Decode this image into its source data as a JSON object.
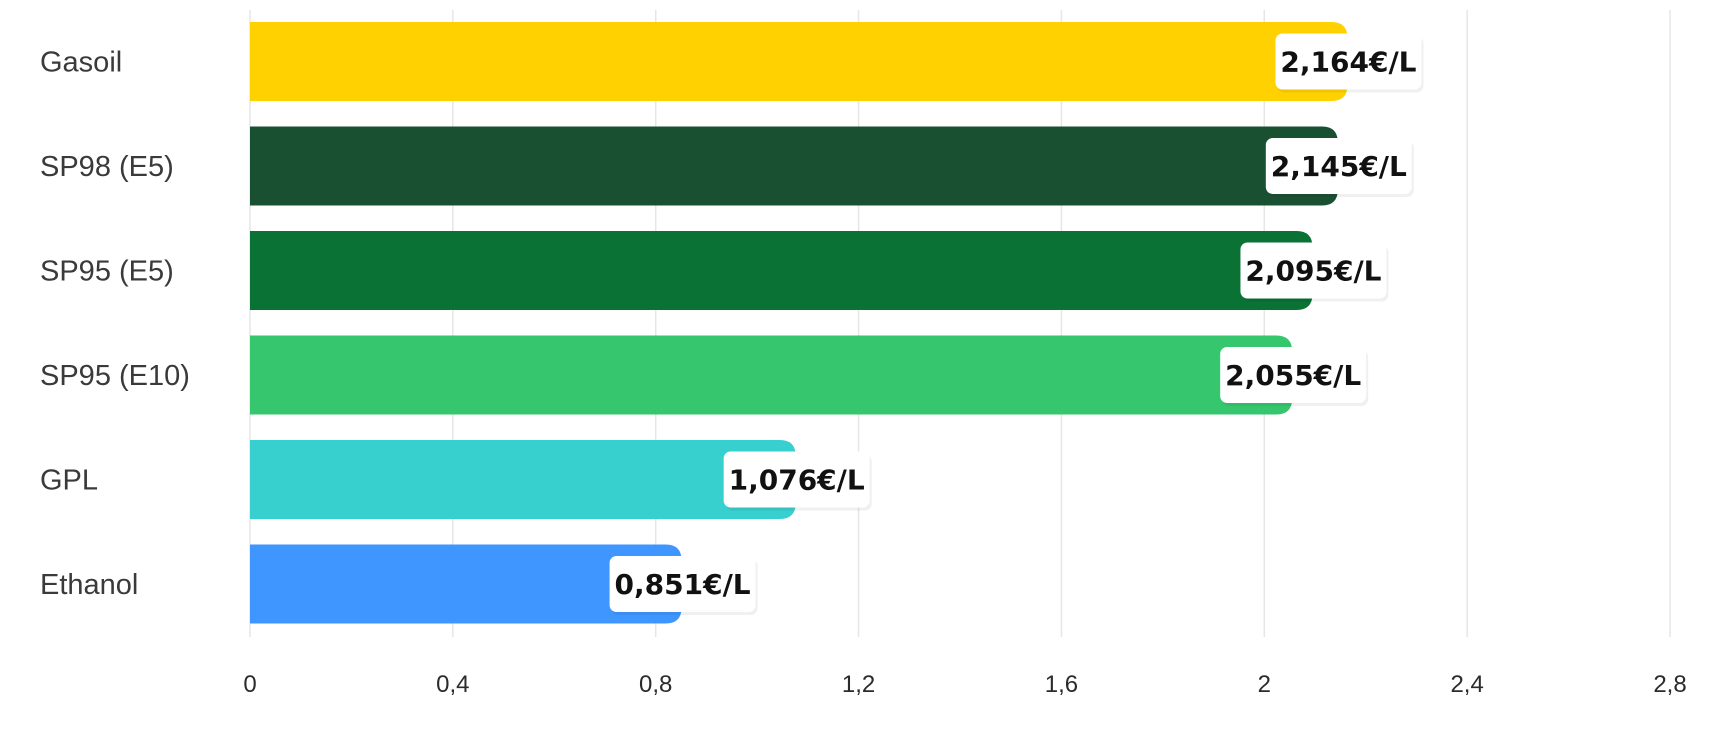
{
  "chart_data": {
    "type": "bar",
    "orientation": "horizontal",
    "categories": [
      "Gasoil",
      "SP98 (E5)",
      "SP95 (E5)",
      "SP95 (E10)",
      "GPL",
      "Ethanol"
    ],
    "values": [
      2.164,
      2.145,
      2.095,
      2.055,
      1.076,
      0.851
    ],
    "value_labels": [
      "2,164€/L",
      "2,145€/L",
      "2,095€/L",
      "2,055€/L",
      "1,076€/L",
      "0,851€/L"
    ],
    "colors": [
      "#FFD100",
      "#1A5032",
      "#0A7234",
      "#36C66E",
      "#38CFCF",
      "#3F96FF"
    ],
    "xlim": [
      0,
      2.8
    ],
    "x_ticks": [
      0,
      0.4,
      0.8,
      1.2,
      1.6,
      2,
      2.4,
      2.8
    ],
    "x_tick_labels": [
      "0",
      "0,4",
      "0,8",
      "1,2",
      "1,6",
      "2",
      "2,4",
      "2,8"
    ],
    "grid": "vertical",
    "legend": "none",
    "title": "",
    "xlabel": "",
    "ylabel": ""
  }
}
